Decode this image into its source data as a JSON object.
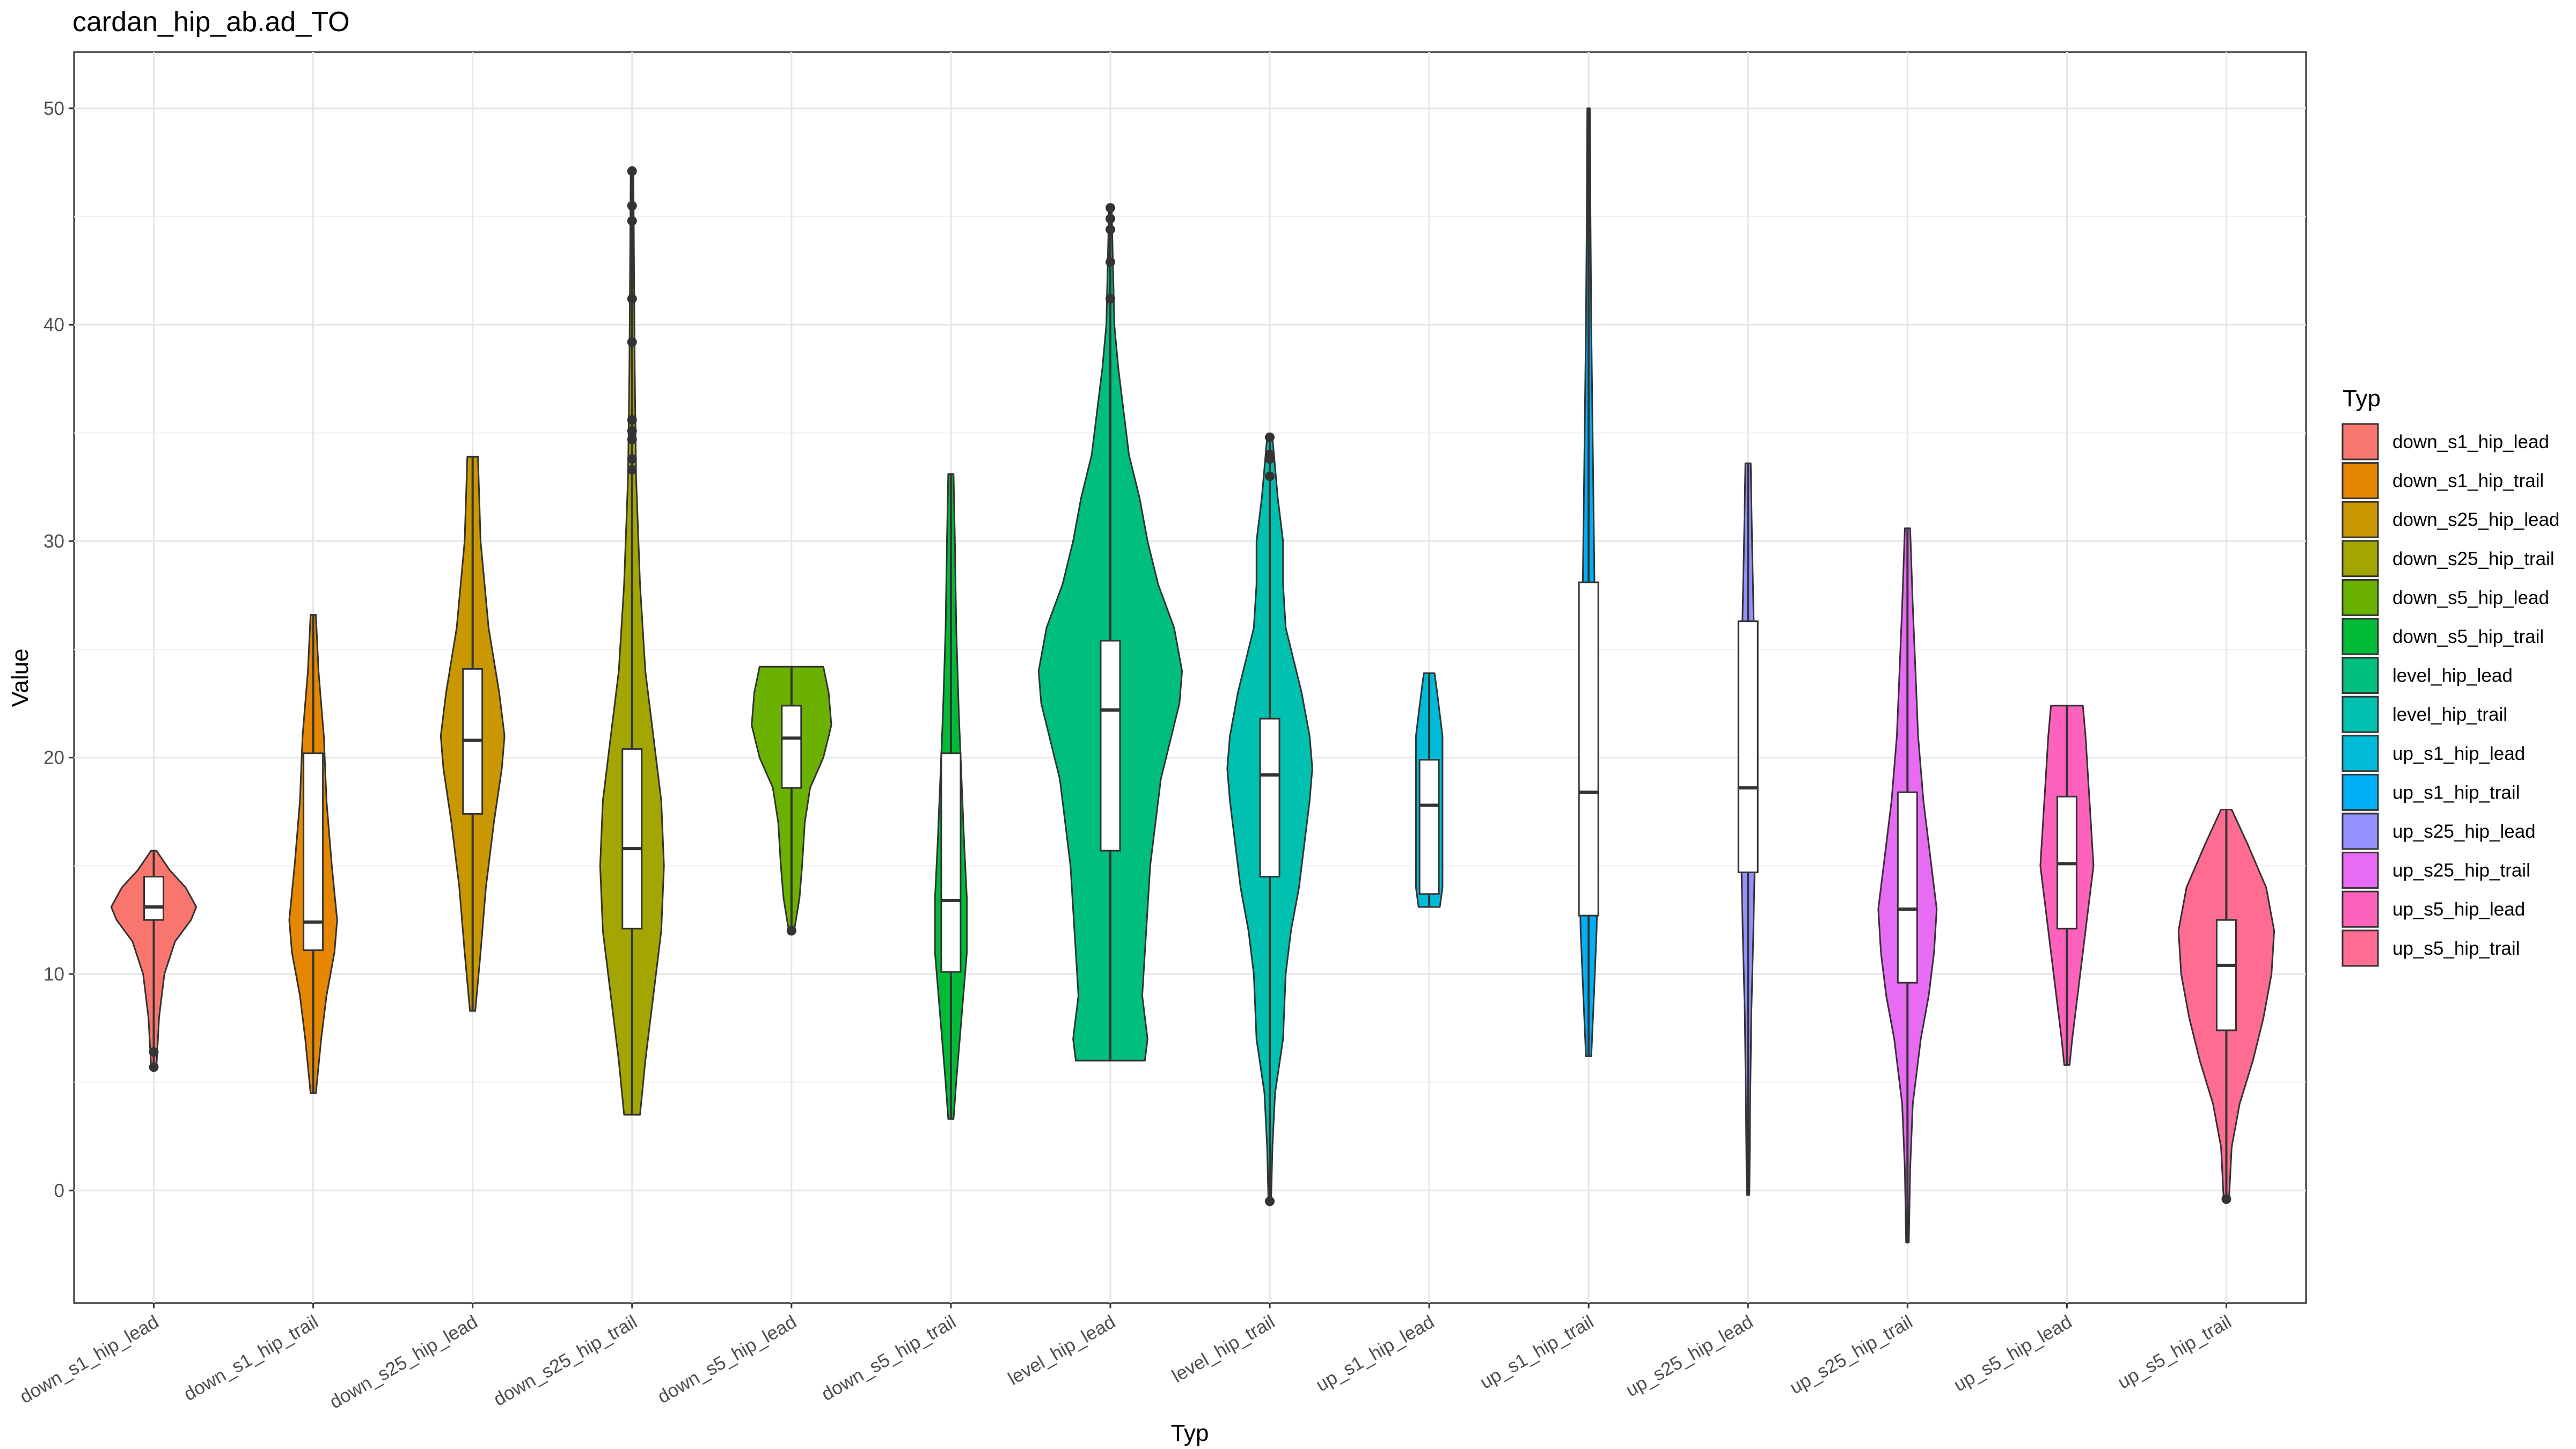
{
  "chart_data": {
    "type": "violin",
    "title": "cardan_hip_ab.ad_TO",
    "xlabel": "Typ",
    "ylabel": "Value",
    "ylim": [
      -5.2,
      52.6
    ],
    "yticks": [
      0,
      10,
      20,
      30,
      40,
      50
    ],
    "grid": true,
    "legend": {
      "title": "Typ",
      "position": "right"
    },
    "categories": [
      "down_s1_hip_lead",
      "down_s1_hip_trail",
      "down_s25_hip_lead",
      "down_s25_hip_trail",
      "down_s5_hip_lead",
      "down_s5_hip_trail",
      "level_hip_lead",
      "level_hip_trail",
      "up_s1_hip_lead",
      "up_s1_hip_trail",
      "up_s25_hip_lead",
      "up_s25_hip_trail",
      "up_s5_hip_lead",
      "up_s5_hip_trail"
    ],
    "series": [
      {
        "name": "down_s1_hip_lead",
        "color": "#F8766D",
        "min": 5.7,
        "max": 15.7,
        "q1": 12.5,
        "median": 13.1,
        "q3": 14.5,
        "outliers": [
          5.7,
          6.4
        ],
        "density": [
          [
            5.7,
            0.01
          ],
          [
            8,
            0.02
          ],
          [
            10,
            0.04
          ],
          [
            11.5,
            0.08
          ],
          [
            12.5,
            0.14
          ],
          [
            13.1,
            0.16
          ],
          [
            14,
            0.12
          ],
          [
            14.8,
            0.06
          ],
          [
            15.7,
            0.01
          ]
        ]
      },
      {
        "name": "down_s1_hip_trail",
        "color": "#E58700",
        "min": 4.5,
        "max": 26.6,
        "q1": 11.1,
        "median": 12.4,
        "q3": 20.2,
        "outliers": [],
        "density": [
          [
            4.5,
            0.01
          ],
          [
            7,
            0.03
          ],
          [
            9,
            0.05
          ],
          [
            11,
            0.08
          ],
          [
            12.5,
            0.09
          ],
          [
            15,
            0.07
          ],
          [
            18,
            0.05
          ],
          [
            21,
            0.04
          ],
          [
            24,
            0.02
          ],
          [
            26.6,
            0.01
          ]
        ]
      },
      {
        "name": "down_s25_hip_lead",
        "color": "#C99800",
        "min": 8.3,
        "max": 33.9,
        "q1": 17.4,
        "median": 20.8,
        "q3": 24.1,
        "outliers": [],
        "density": [
          [
            8.3,
            0.01
          ],
          [
            11,
            0.03
          ],
          [
            14,
            0.05
          ],
          [
            17,
            0.08
          ],
          [
            19.5,
            0.11
          ],
          [
            21,
            0.12
          ],
          [
            23,
            0.1
          ],
          [
            26,
            0.06
          ],
          [
            30,
            0.03
          ],
          [
            33.9,
            0.02
          ]
        ]
      },
      {
        "name": "down_s25_hip_trail",
        "color": "#A3A500",
        "min": 3.5,
        "max": 47.1,
        "q1": 12.1,
        "median": 15.8,
        "q3": 20.4,
        "outliers": [
          33.3,
          33.8,
          34.7,
          35.1,
          35.6,
          39.2,
          41.2,
          44.8,
          45.5,
          47.1
        ],
        "density": [
          [
            3.5,
            0.03
          ],
          [
            6,
            0.05
          ],
          [
            9,
            0.08
          ],
          [
            12,
            0.11
          ],
          [
            15,
            0.12
          ],
          [
            18,
            0.11
          ],
          [
            21,
            0.08
          ],
          [
            24,
            0.05
          ],
          [
            28,
            0.03
          ],
          [
            33,
            0.015
          ],
          [
            38,
            0.01
          ],
          [
            47.1,
            0.005
          ]
        ]
      },
      {
        "name": "down_s5_hip_lead",
        "color": "#6BB100",
        "min": 12.0,
        "max": 24.2,
        "q1": 18.6,
        "median": 20.9,
        "q3": 22.4,
        "outliers": [
          12.0
        ],
        "density": [
          [
            12,
            0.01
          ],
          [
            13.5,
            0.03
          ],
          [
            15,
            0.04
          ],
          [
            17,
            0.05
          ],
          [
            18.6,
            0.07
          ],
          [
            20,
            0.12
          ],
          [
            21.5,
            0.15
          ],
          [
            23,
            0.14
          ],
          [
            24.2,
            0.12
          ]
        ]
      },
      {
        "name": "down_s5_hip_trail",
        "color": "#00BA38",
        "min": 3.3,
        "max": 33.1,
        "q1": 10.1,
        "median": 13.4,
        "q3": 20.2,
        "outliers": [],
        "density": [
          [
            3.3,
            0.01
          ],
          [
            5,
            0.02
          ],
          [
            8,
            0.04
          ],
          [
            11,
            0.06
          ],
          [
            13.5,
            0.06
          ],
          [
            16,
            0.05
          ],
          [
            19,
            0.04
          ],
          [
            22,
            0.03
          ],
          [
            26,
            0.02
          ],
          [
            30,
            0.015
          ],
          [
            33.1,
            0.01
          ]
        ]
      },
      {
        "name": "level_hip_lead",
        "color": "#00BF7D",
        "min": 6.0,
        "max": 45.4,
        "q1": 15.7,
        "median": 22.2,
        "q3": 25.4,
        "outliers": [
          41.2,
          42.9,
          44.4,
          44.9,
          45.4
        ],
        "density": [
          [
            6,
            0.13
          ],
          [
            7,
            0.14
          ],
          [
            9,
            0.12
          ],
          [
            11,
            0.13
          ],
          [
            13,
            0.14
          ],
          [
            15,
            0.15
          ],
          [
            17,
            0.17
          ],
          [
            19,
            0.19
          ],
          [
            21,
            0.23
          ],
          [
            22.5,
            0.26
          ],
          [
            24,
            0.27
          ],
          [
            26,
            0.24
          ],
          [
            28,
            0.18
          ],
          [
            30,
            0.14
          ],
          [
            32,
            0.11
          ],
          [
            34,
            0.07
          ],
          [
            36,
            0.05
          ],
          [
            38,
            0.03
          ],
          [
            40,
            0.015
          ],
          [
            45.4,
            0.005
          ]
        ]
      },
      {
        "name": "level_hip_trail",
        "color": "#00C0AF",
        "min": -0.5,
        "max": 34.8,
        "q1": 14.5,
        "median": 19.2,
        "q3": 21.8,
        "outliers": [
          -0.5,
          33.0,
          33.8,
          34.0,
          34.8
        ],
        "density": [
          [
            -0.5,
            0.005
          ],
          [
            2,
            0.01
          ],
          [
            4.5,
            0.02
          ],
          [
            7,
            0.05
          ],
          [
            10,
            0.06
          ],
          [
            12,
            0.08
          ],
          [
            14,
            0.11
          ],
          [
            16,
            0.13
          ],
          [
            18,
            0.15
          ],
          [
            19.5,
            0.16
          ],
          [
            21,
            0.15
          ],
          [
            23,
            0.12
          ],
          [
            24.5,
            0.09
          ],
          [
            26,
            0.06
          ],
          [
            28,
            0.05
          ],
          [
            30,
            0.05
          ],
          [
            32,
            0.03
          ],
          [
            34.8,
            0.01
          ]
        ]
      },
      {
        "name": "up_s1_hip_lead",
        "color": "#00BCD8",
        "min": 13.1,
        "max": 23.9,
        "q1": 13.7,
        "median": 17.8,
        "q3": 19.9,
        "outliers": [],
        "density": [
          [
            13.1,
            0.04
          ],
          [
            14,
            0.05
          ],
          [
            15,
            0.05
          ],
          [
            16,
            0.05
          ],
          [
            17,
            0.05
          ],
          [
            18,
            0.05
          ],
          [
            19,
            0.05
          ],
          [
            20,
            0.05
          ],
          [
            21,
            0.05
          ],
          [
            22,
            0.04
          ],
          [
            23,
            0.03
          ],
          [
            23.9,
            0.02
          ]
        ]
      },
      {
        "name": "up_s1_hip_trail",
        "color": "#00B0F6",
        "min": 6.2,
        "max": 50.0,
        "q1": 12.7,
        "median": 18.4,
        "q3": 28.1,
        "outliers": [],
        "density": [
          [
            6.2,
            0.01
          ],
          [
            9,
            0.02
          ],
          [
            12,
            0.03
          ],
          [
            15,
            0.035
          ],
          [
            18,
            0.035
          ],
          [
            21,
            0.03
          ],
          [
            25,
            0.025
          ],
          [
            30,
            0.02
          ],
          [
            35,
            0.015
          ],
          [
            40,
            0.01
          ],
          [
            45,
            0.007
          ],
          [
            50,
            0.005
          ]
        ]
      },
      {
        "name": "up_s25_hip_lead",
        "color": "#9590FF",
        "min": -0.2,
        "max": 33.6,
        "q1": 14.7,
        "median": 18.6,
        "q3": 26.3,
        "outliers": [],
        "density": [
          [
            -0.2,
            0.005
          ],
          [
            4,
            0.008
          ],
          [
            8,
            0.012
          ],
          [
            12,
            0.02
          ],
          [
            15,
            0.025
          ],
          [
            18,
            0.03
          ],
          [
            21,
            0.03
          ],
          [
            24,
            0.025
          ],
          [
            27,
            0.02
          ],
          [
            30,
            0.015
          ],
          [
            33.6,
            0.01
          ]
        ]
      },
      {
        "name": "up_s25_hip_trail",
        "color": "#E76BF3",
        "min": -2.4,
        "max": 30.6,
        "q1": 9.6,
        "median": 13.0,
        "q3": 18.4,
        "outliers": [],
        "density": [
          [
            -2.4,
            0.005
          ],
          [
            1,
            0.01
          ],
          [
            4,
            0.02
          ],
          [
            7,
            0.05
          ],
          [
            9,
            0.08
          ],
          [
            11,
            0.1
          ],
          [
            13,
            0.11
          ],
          [
            15,
            0.09
          ],
          [
            18,
            0.06
          ],
          [
            21,
            0.04
          ],
          [
            24,
            0.03
          ],
          [
            27,
            0.02
          ],
          [
            30.6,
            0.01
          ]
        ]
      },
      {
        "name": "up_s5_hip_lead",
        "color": "#FF62BC",
        "min": 5.8,
        "max": 22.4,
        "q1": 12.1,
        "median": 15.1,
        "q3": 18.2,
        "outliers": [],
        "density": [
          [
            5.8,
            0.01
          ],
          [
            7,
            0.02
          ],
          [
            9,
            0.04
          ],
          [
            11,
            0.06
          ],
          [
            13,
            0.08
          ],
          [
            15,
            0.1
          ],
          [
            17,
            0.09
          ],
          [
            19,
            0.08
          ],
          [
            21,
            0.07
          ],
          [
            22.4,
            0.06
          ]
        ]
      },
      {
        "name": "up_s5_hip_trail",
        "color": "#FF6C91",
        "min": -0.4,
        "max": 17.6,
        "q1": 7.4,
        "median": 10.4,
        "q3": 12.5,
        "outliers": [
          -0.4
        ],
        "density": [
          [
            -0.4,
            0.01
          ],
          [
            2,
            0.02
          ],
          [
            4,
            0.05
          ],
          [
            6,
            0.1
          ],
          [
            8,
            0.14
          ],
          [
            10,
            0.17
          ],
          [
            12,
            0.18
          ],
          [
            14,
            0.15
          ],
          [
            16,
            0.08
          ],
          [
            17.6,
            0.02
          ]
        ]
      }
    ]
  }
}
